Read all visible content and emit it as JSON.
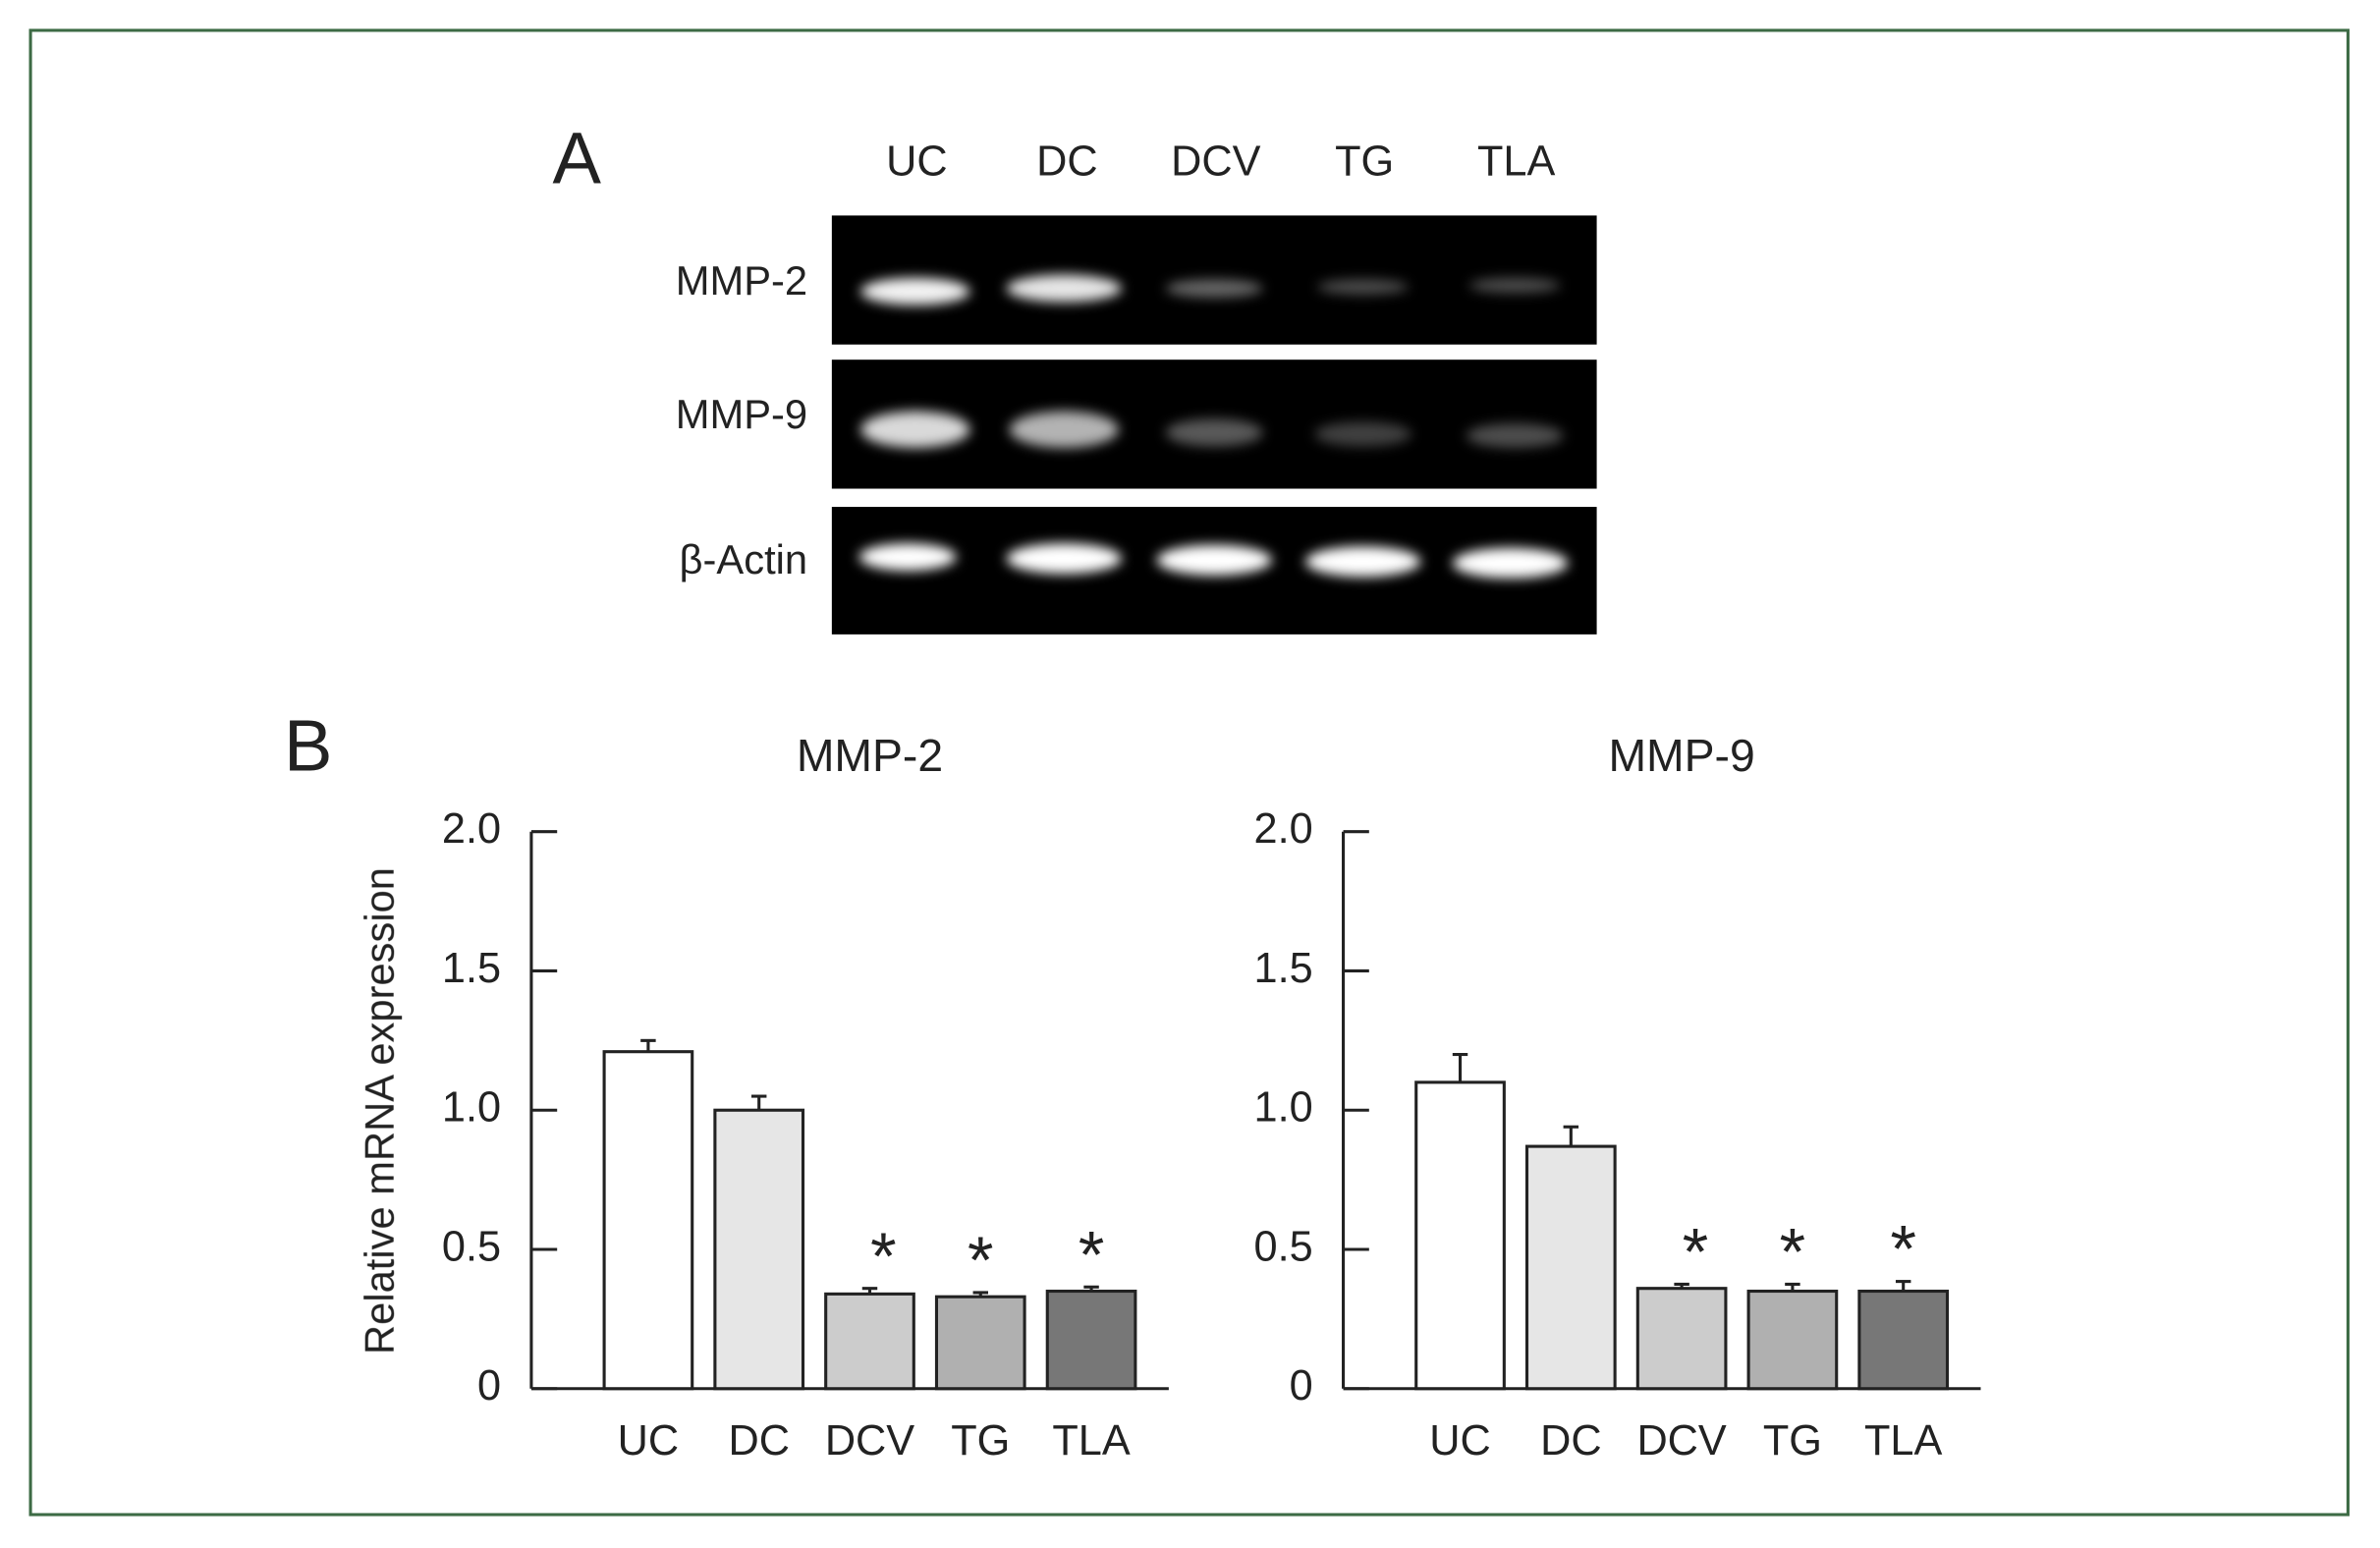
{
  "panel_a": {
    "label": "A",
    "lanes": [
      "UC",
      "DC",
      "DCV",
      "TG",
      "TLA"
    ],
    "rows": [
      "MMP-2",
      "MMP-9",
      "β-Actin"
    ]
  },
  "panel_b_label": "B",
  "chart_data": [
    {
      "type": "bar",
      "title": "MMP-2",
      "ylabel": "Relative mRNA expression",
      "categories": [
        "UC",
        "DC",
        "DCV",
        "TG",
        "TLA"
      ],
      "values": [
        1.21,
        1.0,
        0.34,
        0.33,
        0.35
      ],
      "errors": [
        0.04,
        0.05,
        0.02,
        0.015,
        0.015
      ],
      "colors": [
        "#ffffff",
        "#e6e6e6",
        "#cccccc",
        "#b0b0b0",
        "#777777"
      ],
      "ylim": [
        0,
        2
      ],
      "yticks": [
        0,
        0.5,
        {
          "value": 1,
          "label": "1.0"
        },
        1.5,
        {
          "value": 2,
          "label": "2.0"
        }
      ],
      "annotations": [
        {
          "x": "DCV",
          "text": "*"
        },
        {
          "x": "TG",
          "text": "*"
        },
        {
          "x": "TLA",
          "text": "*"
        }
      ]
    },
    {
      "type": "bar",
      "title": "MMP-9",
      "categories": [
        "UC",
        "DC",
        "DCV",
        "TG",
        "TLA"
      ],
      "values": [
        1.1,
        0.87,
        0.36,
        0.35,
        0.35
      ],
      "errors": [
        0.1,
        0.07,
        0.015,
        0.025,
        0.035
      ],
      "colors": [
        "#ffffff",
        "#e6e6e6",
        "#cccccc",
        "#b0b0b0",
        "#777777"
      ],
      "ylim": [
        0,
        2
      ],
      "yticks": [
        0,
        0.5,
        {
          "value": 1,
          "label": "1.0"
        },
        1.5,
        {
          "value": 2,
          "label": "2.0"
        }
      ],
      "annotations": [
        {
          "x": "DCV",
          "text": "*"
        },
        {
          "x": "TG",
          "text": "*"
        },
        {
          "x": "TLA",
          "text": "*"
        }
      ]
    }
  ]
}
